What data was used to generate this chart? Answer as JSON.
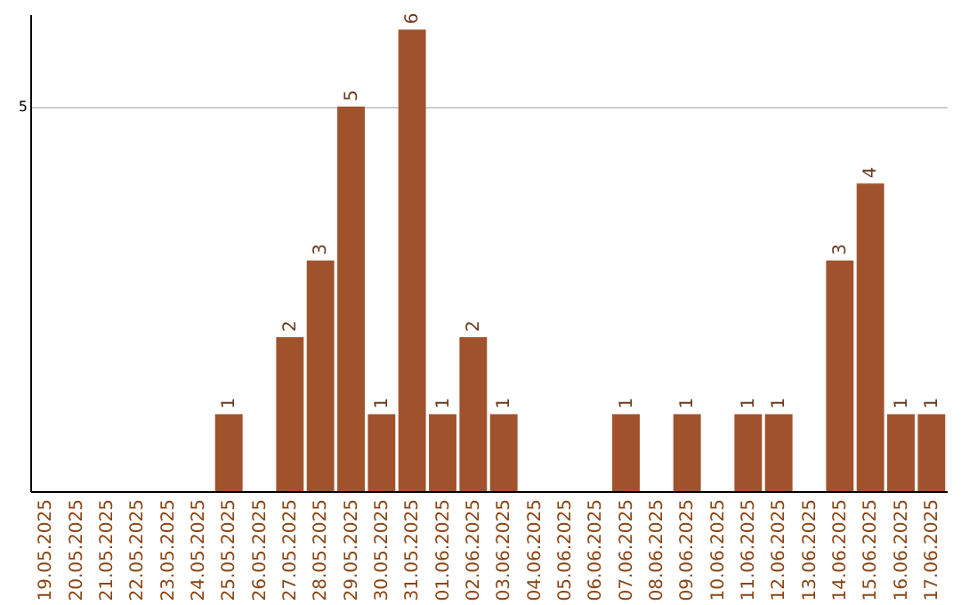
{
  "chart_data": {
    "type": "bar",
    "categories": [
      "19.05.2025",
      "20.05.2025",
      "21.05.2025",
      "22.05.2025",
      "23.05.2025",
      "24.05.2025",
      "25.05.2025",
      "26.05.2025",
      "27.05.2025",
      "28.05.2025",
      "29.05.2025",
      "30.05.2025",
      "31.05.2025",
      "01.06.2025",
      "02.06.2025",
      "03.06.2025",
      "04.06.2025",
      "05.06.2025",
      "06.06.2025",
      "07.06.2025",
      "08.06.2025",
      "09.06.2025",
      "10.06.2025",
      "11.06.2025",
      "12.06.2025",
      "13.06.2025",
      "14.06.2025",
      "15.06.2025",
      "16.06.2025",
      "17.06.2025"
    ],
    "values": [
      0,
      0,
      0,
      0,
      0,
      0,
      1,
      0,
      2,
      3,
      5,
      1,
      6,
      1,
      2,
      1,
      0,
      0,
      0,
      1,
      0,
      1,
      0,
      1,
      1,
      0,
      3,
      4,
      1,
      1
    ],
    "value_labels": [
      null,
      null,
      null,
      null,
      null,
      null,
      "1",
      null,
      "2",
      "3",
      "5",
      "1",
      "6",
      "1",
      "2",
      "1",
      null,
      null,
      null,
      "1",
      null,
      "1",
      null,
      "1",
      "1",
      null,
      "3",
      "4",
      "1",
      "1"
    ],
    "color": "#a0522d",
    "ylim": [
      0,
      6.2
    ],
    "yticks": [
      5
    ],
    "grid": "y"
  }
}
